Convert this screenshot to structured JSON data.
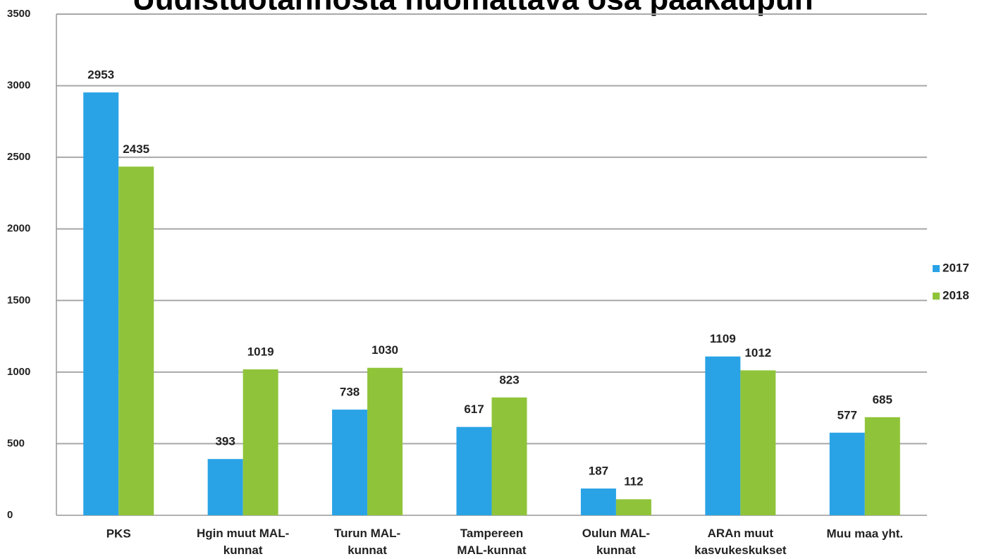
{
  "chart_data": {
    "type": "bar",
    "title": "Uudistuotannosta huomattava osa pääkaupun",
    "categories": [
      "PKS",
      "Hgin muut MAL-\nkunnat",
      "Turun MAL-\nkunnat",
      "Tampereen\nMAL-kunnat",
      "Oulun MAL-\nkunnat",
      "ARAn muut\nkasvukeskukset",
      "Muu maa yht."
    ],
    "series": [
      {
        "name": "2017",
        "color": "#2aa3e6",
        "values": [
          2953,
          393,
          738,
          617,
          187,
          1109,
          577
        ]
      },
      {
        "name": "2018",
        "color": "#8fc43a",
        "values": [
          2435,
          1019,
          1030,
          823,
          112,
          1012,
          685
        ]
      }
    ],
    "ylim": [
      0,
      3500
    ],
    "yticks": [
      0,
      500,
      1000,
      1500,
      2000,
      2500,
      3000,
      3500
    ],
    "grid": true,
    "legend": "right"
  }
}
